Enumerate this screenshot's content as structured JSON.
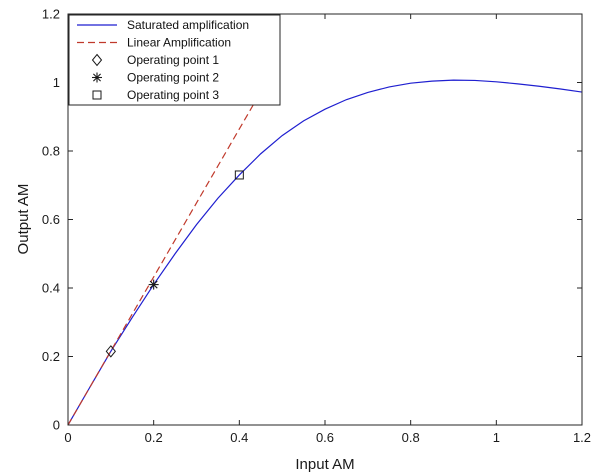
{
  "chart_data": {
    "type": "line",
    "xlabel": "Input AM",
    "ylabel": "Output AM",
    "xlim": [
      0,
      1.2
    ],
    "ylim": [
      0,
      1.2
    ],
    "xticks": [
      0,
      0.2,
      0.4,
      0.6,
      0.8,
      1,
      1.2
    ],
    "yticks": [
      0,
      0.2,
      0.4,
      0.6,
      0.8,
      1,
      1.2
    ],
    "xtick_labels": [
      "0",
      "0.2",
      "0.4",
      "0.6",
      "0.8",
      "1",
      "1.2"
    ],
    "ytick_labels": [
      "0",
      "0.2",
      "0.4",
      "0.6",
      "0.8",
      "1",
      "1.2"
    ],
    "grid": false,
    "legend_position": "top-left",
    "series": [
      {
        "name": "Saturated amplification",
        "style": "solid",
        "color": "#1f1fd0",
        "x": [
          0,
          0.05,
          0.1,
          0.15,
          0.2,
          0.25,
          0.3,
          0.35,
          0.4,
          0.45,
          0.5,
          0.55,
          0.6,
          0.65,
          0.7,
          0.75,
          0.8,
          0.85,
          0.9,
          0.95,
          1.0,
          1.05,
          1.1,
          1.15,
          1.2
        ],
        "y": [
          0,
          0.108,
          0.215,
          0.314,
          0.41,
          0.5,
          0.585,
          0.662,
          0.73,
          0.792,
          0.845,
          0.888,
          0.922,
          0.95,
          0.971,
          0.987,
          0.998,
          1.004,
          1.007,
          1.006,
          1.002,
          0.996,
          0.989,
          0.981,
          0.972
        ]
      },
      {
        "name": "Linear Amplification",
        "style": "dashed",
        "color": "#c0392b",
        "x": [
          0,
          0.435
        ],
        "y": [
          0,
          0.94
        ]
      },
      {
        "name": "Operating point 1",
        "style": "marker",
        "marker": "diamond",
        "color": "#222222",
        "x": [
          0.1
        ],
        "y": [
          0.215
        ]
      },
      {
        "name": "Operating point 2",
        "style": "marker",
        "marker": "asterisk",
        "color": "#222222",
        "x": [
          0.2
        ],
        "y": [
          0.41
        ]
      },
      {
        "name": "Operating point 3",
        "style": "marker",
        "marker": "square",
        "color": "#222222",
        "x": [
          0.4
        ],
        "y": [
          0.73
        ]
      }
    ]
  }
}
